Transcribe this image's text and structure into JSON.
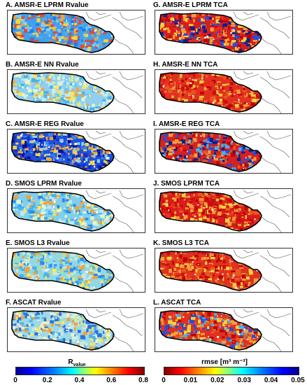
{
  "panels_left": [
    {
      "title": "A. AMSR-E LPRM Rvalue",
      "dominant": "#3fa0f0",
      "palette": [
        "#1e7bf0",
        "#46b0f0",
        "#f2a23a",
        "#f7d43a",
        "#e24a3a",
        "#7fd0f0"
      ]
    },
    {
      "title": "B. AMSR-E NN Rvalue",
      "dominant": "#8fd0f0",
      "palette": [
        "#6ac8f0",
        "#bfe8f0",
        "#f7e85a",
        "#f2a23a",
        "#46b0f0",
        "#e8f4c8"
      ]
    },
    {
      "title": "C. AMSR-E REG Rvalue",
      "dominant": "#2050d8",
      "palette": [
        "#1430c8",
        "#3e80f0",
        "#f7d43a",
        "#f2a23a",
        "#8fd0f0",
        "#0010a0"
      ]
    },
    {
      "title": "D. SMOS LPRM Rvalue",
      "dominant": "#7fd0f0",
      "palette": [
        "#46b0f0",
        "#bfe8f0",
        "#f7e85a",
        "#f2a23a",
        "#2a8af0",
        "#e8f4c8"
      ]
    },
    {
      "title": "E. SMOS L3 Rvalue",
      "dominant": "#8fd8e8",
      "palette": [
        "#46b0f0",
        "#c8e8e0",
        "#f7e85a",
        "#f2a23a",
        "#2a8af0",
        "#a8e0b0"
      ]
    },
    {
      "title": "F. ASCAT Rvalue",
      "dominant": "#9fd8e8",
      "palette": [
        "#46b0f0",
        "#c8e8e0",
        "#f7e85a",
        "#2a70e0",
        "#f2a23a",
        "#e8f4c8"
      ]
    }
  ],
  "panels_right": [
    {
      "title": "G. AMSR-E LPRM TCA",
      "dominant": "#d81c1c",
      "palette": [
        "#c00000",
        "#e83020",
        "#f2a23a",
        "#1e50e0",
        "#0a2090",
        "#f7d43a"
      ]
    },
    {
      "title": "H. AMSR-E NN TCA",
      "dominant": "#e03020",
      "palette": [
        "#c00000",
        "#e85a20",
        "#f2a23a",
        "#f7d43a",
        "#c81010",
        "#e83020"
      ]
    },
    {
      "title": "I. AMSR-E REG TCA",
      "dominant": "#d82020",
      "palette": [
        "#c00000",
        "#f2a23a",
        "#1e50e0",
        "#46b0f0",
        "#0a2090",
        "#e85a20"
      ]
    },
    {
      "title": "J. SMOS LPRM TCA",
      "dominant": "#d81c1c",
      "palette": [
        "#c00000",
        "#e83020",
        "#f2a23a",
        "#f7d43a",
        "#c81010",
        "#e85a20"
      ]
    },
    {
      "title": "K. SMOS L3 TCA",
      "dominant": "#e03020",
      "palette": [
        "#c00000",
        "#e85a20",
        "#f2a23a",
        "#f7d43a",
        "#c81010",
        "#e83020"
      ]
    },
    {
      "title": "L. ASCAT TCA",
      "dominant": "#e03020",
      "palette": [
        "#c00000",
        "#f2a23a",
        "#e85a20",
        "#1e50e0",
        "#f7d43a",
        "#46b0f0"
      ]
    }
  ],
  "colorbar_left": {
    "label": "R",
    "label_sub": "value",
    "ticks": [
      "0",
      "0.2",
      "0.4",
      "0.6",
      "0.8"
    ]
  },
  "colorbar_right": {
    "label": "rmse [m³ m⁻³]",
    "ticks": [
      "0",
      "0.01",
      "0.02",
      "0.03",
      "0.04",
      "0.05"
    ]
  },
  "colors": {
    "boundary": "#000000",
    "country_lines": "#555555"
  }
}
